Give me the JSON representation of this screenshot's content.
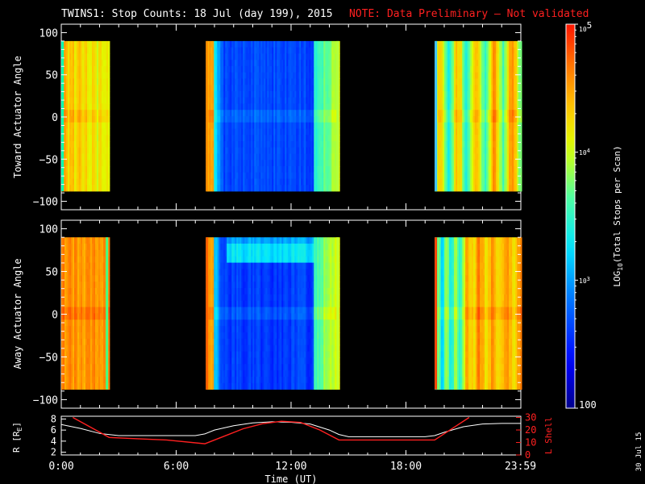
{
  "title": {
    "main": "TWINS1: Stop Counts: 18 Jul (day 199), 2015",
    "note": "NOTE: Data Preliminary — Not validated",
    "note_color": "#ff2020"
  },
  "stamp": "30 Jul 15",
  "colors": {
    "frame": "#ffffff",
    "background": "#000000",
    "r_line": "#ffffff",
    "lshell_line": "#ff2020"
  },
  "chart_data": [
    {
      "type": "heatmap",
      "name": "toward",
      "ylabel": "Toward Actuator Angle",
      "ylim": [
        -110,
        110
      ],
      "yticks": [
        "100",
        "50",
        "0",
        "−50",
        "−100"
      ],
      "ytick_values": [
        100,
        50,
        0,
        -50,
        -100
      ],
      "angle_range": [
        -88,
        90
      ],
      "xlim_hours": [
        0,
        24
      ],
      "segments": [
        {
          "start": 0.0,
          "end": 2.45,
          "palette": "orange-yellow",
          "edge_start": "#00ffb0"
        },
        {
          "start": 7.55,
          "end": 14.5,
          "palette": "blue-core",
          "edge_start": "#ff9000",
          "edge_end": "#b0ff40"
        },
        {
          "start": 19.5,
          "end": 24.0,
          "palette": "yellow-cyan",
          "edge_start": "#40c0ff"
        }
      ]
    },
    {
      "type": "heatmap",
      "name": "away",
      "ylabel": "Away Actuator Angle",
      "ylim": [
        -110,
        110
      ],
      "yticks": [
        "100",
        "50",
        "0",
        "−50",
        "−100"
      ],
      "ytick_values": [
        100,
        50,
        0,
        -50,
        -100
      ],
      "angle_range": [
        -88,
        90
      ],
      "xlim_hours": [
        0,
        24
      ],
      "segments": [
        {
          "start": 0.0,
          "end": 2.45,
          "palette": "orange-red",
          "edge_end": "#40ff80"
        },
        {
          "start": 7.55,
          "end": 14.5,
          "palette": "blue-core-band",
          "edge_start": "#ff6000",
          "edge_end": "#c0ff30"
        },
        {
          "start": 19.5,
          "end": 24.0,
          "palette": "cyan-orange",
          "edge_start": "#ff4000"
        }
      ]
    },
    {
      "type": "line",
      "name": "orbit",
      "ylabel_left": "R [R",
      "ylabel_left_sub": "E",
      "ylabel_left_end": "]",
      "ylabel_right": "L Shell",
      "left_ticks": [
        "8",
        "6",
        "4",
        "2"
      ],
      "left_tick_values": [
        8,
        6,
        4,
        2
      ],
      "right_ticks": [
        "30",
        "20",
        "10",
        "0"
      ],
      "right_tick_values": [
        30,
        20,
        10,
        0
      ],
      "ylim_left": [
        1.5,
        8.5
      ],
      "ylim_right": [
        0,
        31
      ],
      "xlabel": "Time (UT)",
      "xticks": [
        "0:00",
        "6:00",
        "12:00",
        "18:00",
        "23:59"
      ],
      "xtick_hours": [
        0,
        6,
        12,
        18,
        23.98
      ],
      "series": [
        {
          "axis": "left",
          "color": "#ffffff",
          "x": [
            0,
            1,
            2,
            3,
            4,
            5,
            6,
            7,
            7.5,
            8,
            9,
            10,
            11,
            12,
            13,
            14,
            14.5,
            15,
            16,
            17,
            18,
            19,
            19.5,
            20,
            21,
            22,
            23,
            24
          ],
          "y": [
            7.0,
            6.3,
            5.4,
            5.0,
            5.0,
            5.0,
            5.0,
            5.0,
            5.3,
            6.0,
            6.8,
            7.3,
            7.5,
            7.4,
            7.1,
            6.0,
            5.2,
            4.8,
            4.8,
            4.8,
            4.8,
            4.8,
            5.0,
            5.6,
            6.6,
            7.1,
            7.2,
            7.2
          ]
        },
        {
          "axis": "right",
          "color": "#ff2020",
          "x": [
            0.6,
            2.5,
            4.0,
            5.5,
            7.5,
            8.5,
            9.5,
            10.5,
            11.5,
            12.5,
            13.5,
            14.5,
            16.0,
            17.5,
            19.5,
            20.5,
            21.3
          ],
          "y": [
            30,
            14,
            13,
            12,
            9,
            15,
            21,
            25,
            27,
            26,
            20,
            12,
            12,
            12,
            12,
            22,
            30
          ]
        }
      ]
    }
  ],
  "colorbar": {
    "label_pre": "LOG",
    "label_sub": "10",
    "label_post": "(Total Stops per Scan)",
    "top_label_base": "10",
    "top_label_exp": "5",
    "mid_label_base": "10",
    "mid_label_exp": "4",
    "low_label_base": "10",
    "low_label_exp": "3",
    "bottom_label": "100",
    "range": [
      100,
      100000
    ],
    "log": true
  }
}
